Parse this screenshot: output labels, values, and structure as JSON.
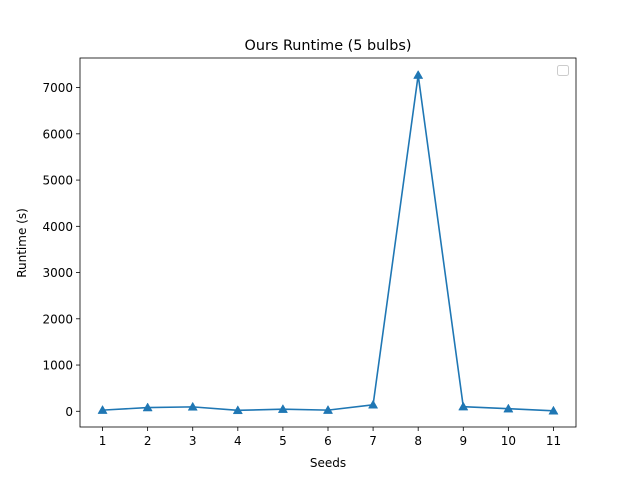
{
  "chart_data": {
    "type": "line",
    "title": "Ours Runtime (5 bulbs)",
    "xlabel": "Seeds",
    "ylabel": "Runtime (s)",
    "x": [
      1,
      2,
      3,
      4,
      5,
      6,
      7,
      8,
      9,
      10,
      11
    ],
    "xlim": [
      0.5,
      11.5
    ],
    "ylim": [
      -340,
      7640
    ],
    "y_ticks": [
      0,
      1000,
      2000,
      3000,
      4000,
      5000,
      6000,
      7000
    ],
    "grid": false,
    "legend": "top-right, empty",
    "marker": "triangle-up",
    "series": [
      {
        "color": "#1f77b4",
        "values": [
          25,
          80,
          95,
          20,
          45,
          25,
          140,
          7270,
          100,
          55,
          10
        ]
      }
    ]
  }
}
